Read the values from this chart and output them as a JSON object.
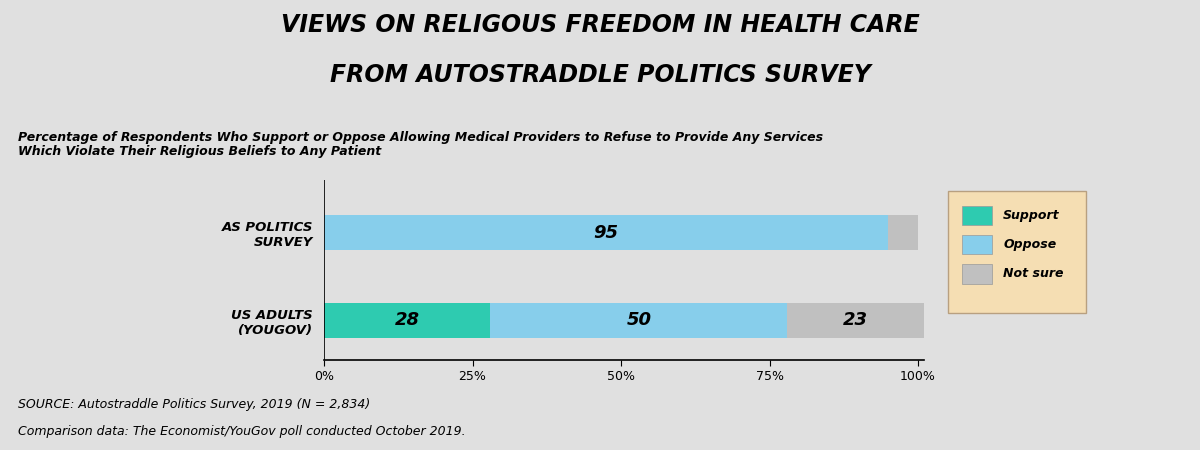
{
  "title_line1": "VIEWS ON RELIGOUS FREEDOM IN HEALTH CARE",
  "title_line2": "FROM AUTOSTRADDLE POLITICS SURVEY",
  "subtitle": "Percentage of Respondents Who Support or Oppose Allowing Medical Providers to Refuse to Provide Any Services\nWhich Violate Their Religious Beliefs to Any Patient",
  "categories": [
    "AS POLITICS\nSURVEY",
    "US ADULTS\n(YOUGOV)"
  ],
  "support_values": [
    0,
    28
  ],
  "oppose_values": [
    95,
    50
  ],
  "not_sure_values": [
    5,
    23
  ],
  "support_color": "#2ecbb0",
  "oppose_color": "#87ceeb",
  "not_sure_color": "#c0c0c0",
  "support_labels": [
    "",
    "28"
  ],
  "oppose_labels": [
    "95",
    "50"
  ],
  "not_sure_labels": [
    "",
    "23"
  ],
  "background_color": "#e0e0e0",
  "legend_bg_color": "#f5deb3",
  "source_line1": "SOURCE: Autostraddle Politics Survey, 2019 (N = 2,834)",
  "source_line2": "Comparison data: The Economist/YouGov poll conducted October 2019."
}
